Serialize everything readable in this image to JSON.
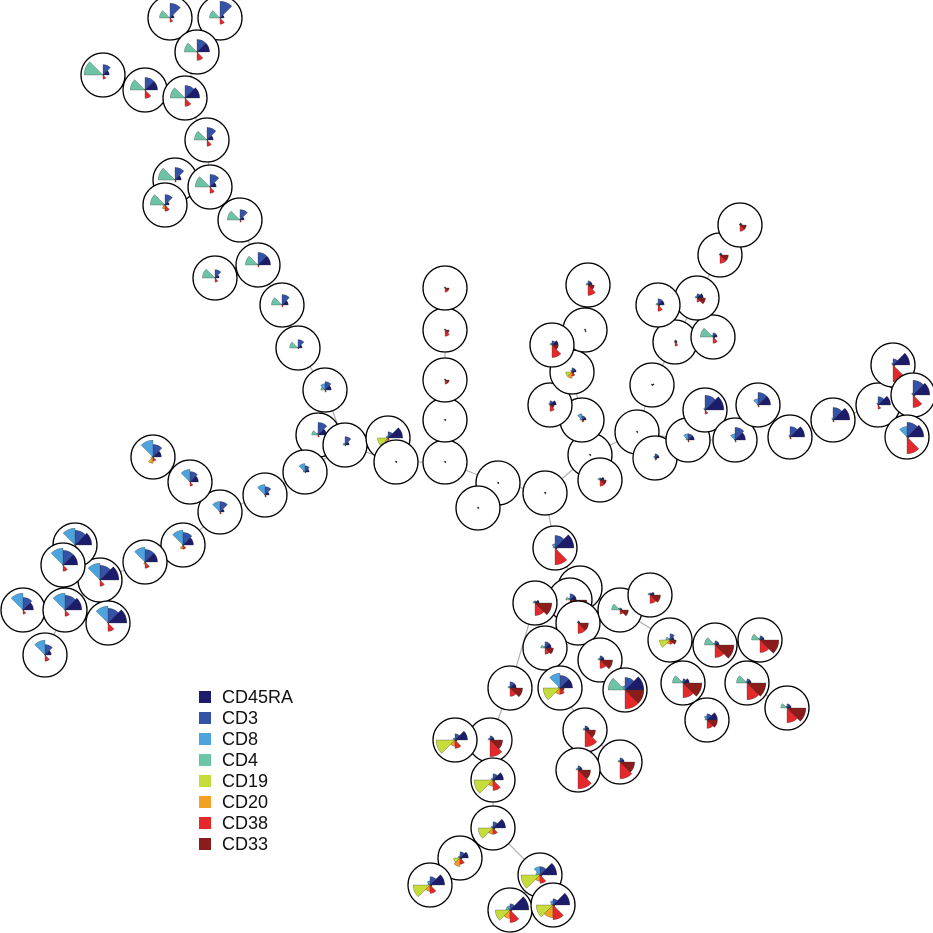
{
  "legend": [
    {
      "label": "CD45RA",
      "color": "#1c1c6b"
    },
    {
      "label": "CD3",
      "color": "#3553a6"
    },
    {
      "label": "CD8",
      "color": "#4da3dd"
    },
    {
      "label": "CD4",
      "color": "#6cc3a6"
    },
    {
      "label": "CD19",
      "color": "#c6dc3a"
    },
    {
      "label": "CD20",
      "color": "#f3a122"
    },
    {
      "label": "CD38",
      "color": "#e5292b"
    },
    {
      "label": "CD33",
      "color": "#8a1c1c"
    }
  ],
  "nodes": [
    [
      0.2,
      0.7,
      0.05,
      0.5,
      0,
      0,
      0.2,
      0.05
    ],
    [
      0.2,
      0.8,
      0.05,
      0.5,
      0,
      0,
      0.3,
      0.05
    ],
    [
      0.6,
      0.6,
      0.05,
      0.6,
      0,
      0,
      0.4,
      0.05
    ],
    [
      0.3,
      0.5,
      0.05,
      0.9,
      0,
      0,
      0.2,
      0.05
    ],
    [
      0.6,
      0.6,
      0.05,
      0.7,
      0,
      0,
      0.4,
      0.05
    ],
    [
      0.7,
      0.6,
      0.05,
      0.7,
      0,
      0,
      0.4,
      0.05
    ],
    [
      0.3,
      0.6,
      0.05,
      0.6,
      0,
      0,
      0.3,
      0.05
    ],
    [
      0.3,
      0.6,
      0.05,
      0.8,
      0,
      0,
      0.1,
      0.05
    ],
    [
      0.3,
      0.6,
      0.05,
      0.7,
      0,
      0,
      0.3,
      0.05
    ],
    [
      0.2,
      0.5,
      0.05,
      0.7,
      0.1,
      0.2,
      0.3,
      0.05
    ],
    [
      0.2,
      0.5,
      0.05,
      0.6,
      0,
      0,
      0.1,
      0.05
    ],
    [
      0.6,
      0.6,
      0.05,
      0.6,
      0,
      0,
      0.1,
      0.05
    ],
    [
      0.2,
      0.4,
      0.05,
      0.6,
      0,
      0,
      0.2,
      0.05
    ],
    [
      0.3,
      0.5,
      0.05,
      0.5,
      0,
      0,
      0.1,
      0.05
    ],
    [
      0.2,
      0.4,
      0.05,
      0.4,
      0,
      0,
      0.05,
      0.05
    ],
    [
      0.3,
      0.4,
      0.3,
      0.2,
      0,
      0,
      0.1,
      0.05
    ],
    [
      0.4,
      0.6,
      0.1,
      0.3,
      0,
      0,
      0.1,
      0.05
    ],
    [
      0.2,
      0.4,
      0.1,
      0.1,
      0,
      0,
      0.05,
      0.05
    ],
    [
      0.7,
      0.3,
      0.1,
      0.1,
      0.5,
      0.2,
      0.1,
      0.05
    ],
    [
      0.2,
      0.3,
      0.4,
      0.1,
      0,
      0,
      0.05,
      0.05
    ],
    [
      0.2,
      0.4,
      0.5,
      0.05,
      0,
      0,
      0.1,
      0.05
    ],
    [
      0.2,
      0.5,
      0.5,
      0.05,
      0,
      0,
      0.1,
      0.05
    ],
    [
      0.4,
      0.5,
      0.6,
      0.05,
      0,
      0,
      0.2,
      0.05
    ],
    [
      0.4,
      0.6,
      0.8,
      0.05,
      0.1,
      0.3,
      0.2,
      0.05
    ],
    [
      0.5,
      0.6,
      0.7,
      0.05,
      0,
      0.2,
      0.2,
      0.05
    ],
    [
      0.6,
      0.6,
      0.7,
      0.05,
      0,
      0.1,
      0.3,
      0.05
    ],
    [
      0.9,
      0.7,
      0.8,
      0.05,
      0,
      0,
      0.3,
      0.05
    ],
    [
      0.8,
      0.7,
      0.8,
      0.05,
      0,
      0,
      0.3,
      0.05
    ],
    [
      0.7,
      0.7,
      0.8,
      0.05,
      0,
      0,
      0.3,
      0.05
    ],
    [
      0.5,
      0.6,
      0.8,
      0.05,
      0,
      0,
      0.2,
      0.05
    ],
    [
      0.8,
      0.7,
      0.8,
      0.05,
      0,
      0,
      0.3,
      0.05
    ],
    [
      0.9,
      0.7,
      0.8,
      0.05,
      0,
      0,
      0.4,
      0.05
    ],
    [
      0.3,
      0.5,
      0.7,
      0.05,
      0,
      0,
      0.3,
      0.05
    ],
    [
      0.05,
      0.05,
      0.05,
      0.05,
      0,
      0,
      0.05,
      0.05
    ],
    [
      0.05,
      0.05,
      0.05,
      0.05,
      0,
      0,
      0.05,
      0.05
    ],
    [
      0.05,
      0.05,
      0.05,
      0.05,
      0,
      0,
      0.05,
      0.05
    ],
    [
      0.05,
      0.05,
      0.05,
      0.05,
      0,
      0,
      0.2,
      0.2
    ],
    [
      0.05,
      0.05,
      0.05,
      0.05,
      0,
      0,
      0.3,
      0.2
    ],
    [
      0.05,
      0.05,
      0.05,
      0.05,
      0,
      0,
      0.2,
      0.2
    ],
    [
      0.05,
      0.05,
      0.05,
      0.05,
      0,
      0,
      0.05,
      0.05
    ],
    [
      0.05,
      0.05,
      0.05,
      0.05,
      0,
      0,
      0.05,
      0.05
    ],
    [
      0.05,
      0.05,
      0.05,
      0.05,
      0,
      0,
      0.05,
      0.05
    ],
    [
      0.05,
      0.05,
      0.05,
      0.05,
      0,
      0,
      0.05,
      0.05
    ],
    [
      0.2,
      0.1,
      0.1,
      0.1,
      0,
      0,
      0.3,
      0.3
    ],
    [
      0.2,
      0.2,
      0.3,
      0.1,
      0,
      0,
      0.1,
      0.1
    ],
    [
      0.3,
      0.2,
      0.1,
      0.05,
      0,
      0,
      0.3,
      0.2
    ],
    [
      0.2,
      0.2,
      0.1,
      0.05,
      0.3,
      0.3,
      0.2,
      0.1
    ],
    [
      0.05,
      0.05,
      0.05,
      0.05,
      0,
      0,
      0.1,
      0.05
    ],
    [
      0.2,
      0.2,
      0.1,
      0.1,
      0,
      0,
      0.5,
      0.3
    ],
    [
      0.3,
      0.2,
      0.1,
      0.1,
      0,
      0,
      0.6,
      0.3
    ],
    [
      0.05,
      0.05,
      0.05,
      0.05,
      0,
      0,
      0.05,
      0.05
    ],
    [
      0.2,
      0.2,
      0.1,
      0.05,
      0,
      0,
      0.1,
      0.1
    ],
    [
      0.1,
      0.05,
      0.05,
      0.05,
      0,
      0,
      0.05,
      0.05
    ],
    [
      0.1,
      0.1,
      0.05,
      0.05,
      0,
      0,
      0.2,
      0.1
    ],
    [
      0.2,
      0.2,
      0.1,
      0.6,
      0,
      0,
      0.3,
      0.1
    ],
    [
      0.3,
      0.2,
      0.1,
      0.1,
      0,
      0,
      0.2,
      0.4
    ],
    [
      0.1,
      0.1,
      0.05,
      0.05,
      0,
      0,
      0.4,
      0.4
    ],
    [
      0.1,
      0.1,
      0.05,
      0.05,
      0,
      0,
      0.3,
      0.3
    ],
    [
      0.3,
      0.3,
      0.1,
      0.1,
      0,
      0,
      0.3,
      0.1
    ],
    [
      0.3,
      0.3,
      0.3,
      0.1,
      0,
      0,
      0.1,
      0.05
    ],
    [
      0.9,
      0.7,
      0.1,
      0.05,
      0,
      0,
      0.2,
      0.05
    ],
    [
      0.5,
      0.6,
      0.3,
      0.05,
      0,
      0,
      0.1,
      0.05
    ],
    [
      0.6,
      0.6,
      0.3,
      0.05,
      0,
      0,
      0.1,
      0.05
    ],
    [
      0.7,
      0.5,
      0.1,
      0.05,
      0,
      0,
      0.1,
      0.05
    ],
    [
      0.8,
      0.6,
      0.1,
      0.05,
      0,
      0,
      0.1,
      0.05
    ],
    [
      0.6,
      0.4,
      0.1,
      0.05,
      0,
      0,
      0.2,
      0.05
    ],
    [
      0.8,
      0.3,
      0.1,
      0.05,
      0,
      0,
      0.8,
      0.1
    ],
    [
      0.8,
      0.7,
      0.1,
      0.05,
      0,
      0,
      0.6,
      0.1
    ],
    [
      0.8,
      0.7,
      0.5,
      0.05,
      0,
      0,
      0.8,
      0.1
    ],
    [
      0.9,
      0.6,
      0.2,
      0.1,
      0,
      0,
      0.8,
      0.1
    ],
    [
      0.05,
      0.05,
      0.05,
      0.05,
      0,
      0,
      0.4,
      0.2
    ],
    [
      0.3,
      0.3,
      0.1,
      0.2,
      0,
      0,
      0.6,
      0.8
    ],
    [
      0.2,
      0.1,
      0.1,
      0.1,
      0,
      0,
      0.6,
      0.8
    ],
    [
      0.1,
      0.1,
      0.05,
      0.05,
      0,
      0,
      0.5,
      0.5
    ],
    [
      0.1,
      0.1,
      0.1,
      0.4,
      0,
      0,
      0.2,
      0.4
    ],
    [
      0.2,
      0.1,
      0.1,
      0.1,
      0,
      0,
      0.4,
      0.5
    ],
    [
      0.3,
      0.3,
      0.1,
      0.2,
      0,
      0,
      0.3,
      0.4
    ],
    [
      0.2,
      0.2,
      0.1,
      0.1,
      0,
      0,
      0.4,
      0.6
    ],
    [
      0.2,
      0.3,
      0.1,
      0.2,
      0.5,
      0.2,
      0.2,
      0.3
    ],
    [
      0.2,
      0.2,
      0.1,
      0.5,
      0,
      0,
      0.6,
      0.9
    ],
    [
      0.2,
      0.2,
      0.1,
      0.4,
      0,
      0,
      0.6,
      0.9
    ],
    [
      0.3,
      0.2,
      0.1,
      0.5,
      0,
      0,
      0.7,
      0.9
    ],
    [
      0.2,
      0.2,
      0.1,
      0.5,
      0,
      0,
      0.8,
      0.9
    ],
    [
      0.2,
      0.2,
      0.1,
      0.3,
      0,
      0,
      0.7,
      0.9
    ],
    [
      0.5,
      0.3,
      0.2,
      0.1,
      0,
      0,
      0.4,
      0.5
    ],
    [
      0.9,
      0.6,
      0.2,
      0.8,
      0,
      0,
      0.9,
      0.9
    ],
    [
      0.6,
      0.6,
      0.7,
      0.1,
      0.8,
      0.3,
      0.3,
      0.2
    ],
    [
      0.3,
      0.3,
      0.1,
      0.1,
      0,
      0,
      0.4,
      0.6
    ],
    [
      0.2,
      0.2,
      0.1,
      0.1,
      0,
      0,
      0.8,
      0.5
    ],
    [
      0.2,
      0.2,
      0.1,
      0.1,
      0,
      0,
      0.8,
      0.7
    ],
    [
      0.2,
      0.2,
      0.1,
      0.1,
      0,
      0,
      0.9,
      0.6
    ],
    [
      0.2,
      0.2,
      0.1,
      0.1,
      0,
      0,
      0.8,
      0.6
    ],
    [
      0.6,
      0.3,
      0.1,
      0.1,
      0.9,
      0.3,
      0.4,
      0.1
    ],
    [
      0.5,
      0.3,
      0.1,
      0.1,
      0.9,
      0.3,
      0.5,
      0.1
    ],
    [
      0.6,
      0.3,
      0.1,
      0.1,
      0.7,
      0.3,
      0.3,
      0.1
    ],
    [
      0.4,
      0.3,
      0.1,
      0.1,
      0.3,
      0.4,
      0.3,
      0.1
    ],
    [
      0.7,
      0.4,
      0.2,
      0.1,
      0.8,
      0.3,
      0.4,
      0.1
    ],
    [
      0.8,
      0.4,
      0.4,
      0.2,
      0.9,
      0.3,
      0.4,
      0.1
    ],
    [
      0.9,
      0.3,
      0.2,
      0.2,
      0.7,
      0.4,
      0.6,
      0.1
    ],
    [
      0.8,
      0.3,
      0.2,
      0.1,
      0.8,
      0.6,
      0.7,
      0.1
    ]
  ]
}
